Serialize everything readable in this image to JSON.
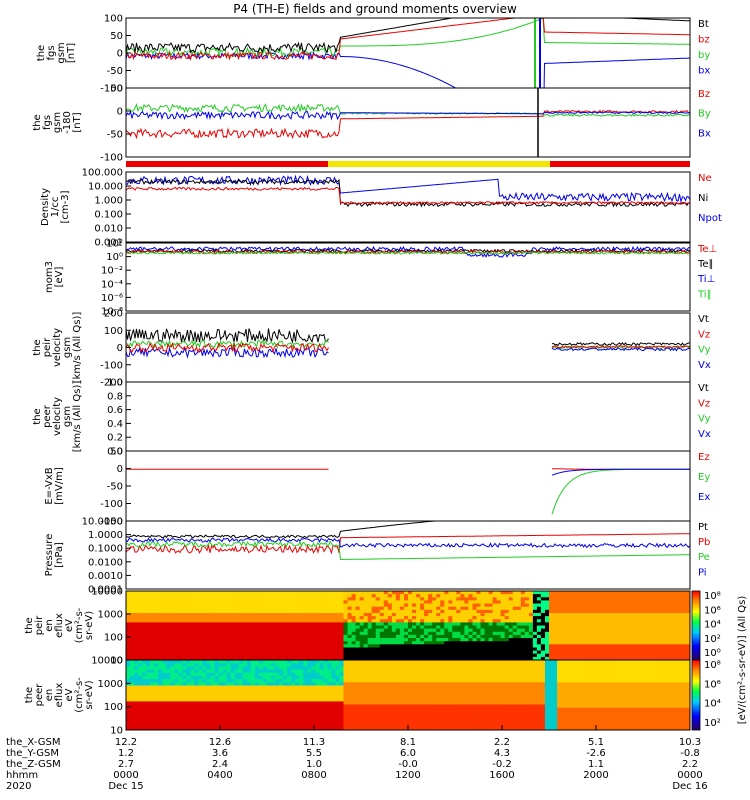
{
  "title": "P4 (TH-E) fields and ground moments overview",
  "colors": {
    "black": "#000000",
    "red": "#ee0000",
    "green": "#22cc22",
    "blue": "#0000ee",
    "yellow": "#f2e600"
  },
  "chart_data": [
    {
      "type": "line",
      "name": "fgs-gsm",
      "ylabel": [
        "the",
        "fgs",
        "gsm",
        "[nT]"
      ],
      "ylim": [
        -100,
        100
      ],
      "yticks": [
        "100",
        "50",
        "0",
        "-50",
        "-100"
      ],
      "legend": [
        {
          "label": "Bt",
          "color": "black"
        },
        {
          "label": "bz",
          "color": "red"
        },
        {
          "label": "by",
          "color": "green"
        },
        {
          "label": "bx",
          "color": "blue"
        }
      ]
    },
    {
      "type": "line",
      "name": "fgs-gsm-rot",
      "ylabel": [
        "the",
        "fgs",
        "gsm",
        "-180",
        "[nT]"
      ],
      "ylim": [
        -130,
        60
      ],
      "yticks": [
        "50",
        "0",
        "-50",
        "-100"
      ],
      "legend": [
        {
          "label": "Bz",
          "color": "red"
        },
        {
          "label": "By",
          "color": "green"
        },
        {
          "label": "Bx",
          "color": "blue"
        }
      ]
    },
    {
      "type": "line",
      "name": "density",
      "ylabel": [
        "Density",
        "1/cc",
        "[cm-3]"
      ],
      "ylim": [
        0.001,
        100
      ],
      "yticks": [
        "100.000",
        "10.000",
        "1.000",
        "0.100",
        "0.010",
        "0.001"
      ],
      "legend": [
        {
          "label": "Ne",
          "color": "red"
        },
        {
          "label": "Ni",
          "color": "black"
        },
        {
          "label": "Npot",
          "color": "blue"
        }
      ]
    },
    {
      "type": "line",
      "name": "temperature",
      "ylabel": [
        "mom3",
        "[eV]"
      ],
      "yticks": [
        "10²",
        "10⁰",
        "10⁻²",
        "10⁻⁴",
        "10⁻⁶",
        "10⁻⁸"
      ],
      "legend": [
        {
          "label": "Te⊥",
          "color": "red"
        },
        {
          "label": "Te∥",
          "color": "black"
        },
        {
          "label": "Ti⊥",
          "color": "blue"
        },
        {
          "label": "Ti∥",
          "color": "green"
        }
      ]
    },
    {
      "type": "line",
      "name": "peir-velocity",
      "ylabel": [
        "the",
        "peir",
        "velocity",
        "gsm",
        "[km/s (All Qs)]"
      ],
      "ylim": [
        -200,
        200
      ],
      "yticks": [
        "200",
        "100",
        "0",
        "-100",
        "-200"
      ],
      "legend": [
        {
          "label": "Vt",
          "color": "black"
        },
        {
          "label": "Vz",
          "color": "red"
        },
        {
          "label": "Vy",
          "color": "green"
        },
        {
          "label": "Vx",
          "color": "blue"
        }
      ]
    },
    {
      "type": "line",
      "name": "peer-velocity",
      "ylabel": [
        "the",
        "peer",
        "velocity",
        "gsm",
        "[km/s (All Qs)]"
      ],
      "ylim": [
        0,
        1
      ],
      "yticks": [
        "1.0",
        "0.8",
        "0.6",
        "0.4",
        "0.2",
        "0.0"
      ],
      "legend": [
        {
          "label": "Vt",
          "color": "black"
        },
        {
          "label": "Vz",
          "color": "red"
        },
        {
          "label": "Vy",
          "color": "green"
        },
        {
          "label": "Vx",
          "color": "blue"
        }
      ]
    },
    {
      "type": "line",
      "name": "efield",
      "ylabel": [
        "E=-VxB",
        "[mV/m]"
      ],
      "ylim": [
        -170,
        60
      ],
      "yticks": [
        "50",
        "0",
        "-50",
        "-100",
        "-150"
      ],
      "legend": [
        {
          "label": "Ez",
          "color": "red"
        },
        {
          "label": "Ey",
          "color": "green"
        },
        {
          "label": "Ex",
          "color": "blue"
        }
      ]
    },
    {
      "type": "line",
      "name": "pressure",
      "ylabel": [
        "Pressure",
        "[nPa]"
      ],
      "ylim": [
        5e-05,
        10
      ],
      "yticks": [
        "10.0000",
        "1.0000",
        "0.1000",
        "0.0100",
        "0.0010",
        "0.0001"
      ],
      "legend": [
        {
          "label": "Pt",
          "color": "black"
        },
        {
          "label": "Pb",
          "color": "red"
        },
        {
          "label": "Pe",
          "color": "green"
        },
        {
          "label": "Pi",
          "color": "blue"
        }
      ]
    },
    {
      "type": "heatmap",
      "name": "peir-spectrogram",
      "ylabel": [
        "the",
        "peir",
        "en",
        "eflux",
        "eV",
        "(cm²-s-",
        "sr-eV)"
      ],
      "ylim": [
        10,
        10000
      ],
      "yticks": [
        "10000",
        "1000",
        "100",
        "10"
      ]
    },
    {
      "type": "heatmap",
      "name": "peer-spectrogram",
      "ylabel": [
        "the",
        "peer",
        "en",
        "eflux",
        "eV",
        "(cm²-s-",
        "sr-eV)"
      ],
      "ylim": [
        10,
        10000
      ],
      "yticks": [
        "10000",
        "1000",
        "100",
        "10"
      ]
    }
  ],
  "colorbar": {
    "label": "[eV/(cm²-s-sr-eV)] (All Qs)",
    "ticks1": [
      "10⁸",
      "10⁶",
      "10⁴",
      "10²",
      "10⁰"
    ],
    "ticks2": [
      "10⁸",
      "10⁶",
      "10⁴",
      "10²"
    ]
  },
  "time_axis": {
    "row_labels": [
      "the_X-GSM",
      "the_Y-GSM",
      "the_Z-GSM",
      "hhmm",
      "2020"
    ],
    "columns": [
      {
        "x": "12.2",
        "y": "1.2",
        "z": "2.7",
        "hhmm": "0000",
        "date": "Dec 15"
      },
      {
        "x": "12.6",
        "y": "3.6",
        "z": "2.4",
        "hhmm": "0400",
        "date": ""
      },
      {
        "x": "11.3",
        "y": "5.5",
        "z": "1.0",
        "hhmm": "0800",
        "date": ""
      },
      {
        "x": "8.1",
        "y": "6.0",
        "z": "-0.0",
        "hhmm": "1200",
        "date": ""
      },
      {
        "x": "2.2",
        "y": "4.3",
        "z": "-0.2",
        "hhmm": "1600",
        "date": ""
      },
      {
        "x": "5.1",
        "y": "-2.6",
        "z": "1.1",
        "hhmm": "2000",
        "date": ""
      },
      {
        "x": "10.3",
        "y": "-0.8",
        "z": "2.2",
        "hhmm": "0000",
        "date": "Dec 16"
      }
    ]
  }
}
